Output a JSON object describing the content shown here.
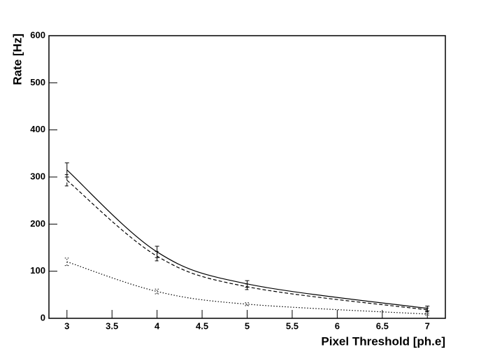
{
  "chart_data": {
    "type": "line",
    "x_label": "Pixel Threshold [ph.e]",
    "y_label": "Rate [Hz]",
    "x": [
      3,
      4,
      5,
      7
    ],
    "series": [
      {
        "color": "#000000",
        "style": "solid",
        "values": [
          315,
          141,
          73,
          21
        ],
        "errors": [
          15,
          12,
          7,
          5
        ]
      },
      {
        "color": "#000000",
        "style": "dashed",
        "values": [
          293,
          132,
          67,
          18
        ],
        "errors": [
          12,
          10,
          6,
          4
        ]
      },
      {
        "color": "#000000",
        "style": "dotted",
        "values": [
          120,
          57,
          30,
          9
        ],
        "errors": [
          8,
          5,
          3,
          2
        ]
      }
    ],
    "xlim": [
      2.8,
      7.2
    ],
    "xticks": [
      3,
      3.5,
      4,
      4.5,
      5,
      5.5,
      6,
      6.5,
      7
    ],
    "ylim": [
      0,
      600
    ],
    "yticks": [
      0,
      100,
      200,
      300,
      400,
      500,
      600
    ]
  }
}
